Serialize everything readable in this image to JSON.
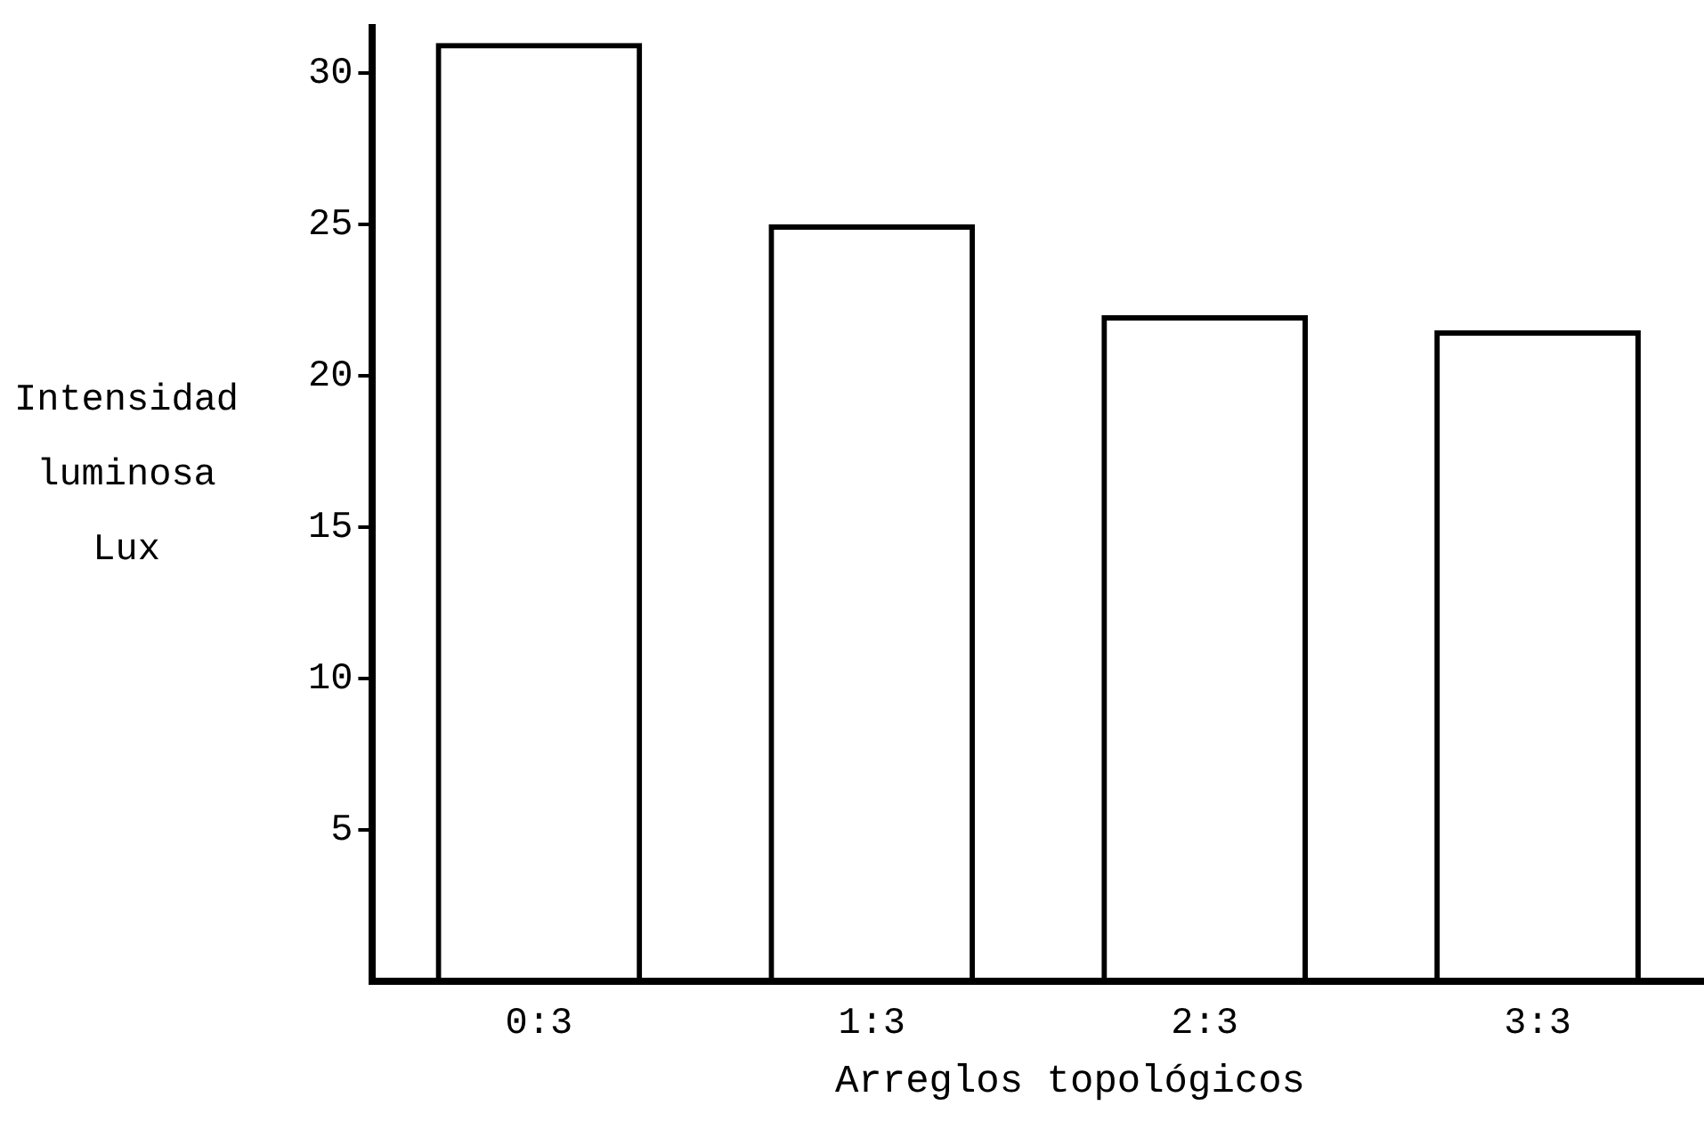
{
  "chart_data": {
    "type": "bar",
    "xlabel": "Arreglos topológicos",
    "ylabel": "Intensidad\nluminosa\nLux",
    "categories": [
      "0:3",
      "1:3",
      "2:3",
      "3:3"
    ],
    "values": [
      31,
      25,
      22,
      21.5
    ],
    "color": "#000000",
    "ylim": [
      0,
      31.5
    ],
    "yticks": [
      5,
      10,
      15,
      20,
      25,
      30
    ],
    "grid": false,
    "legend": false
  }
}
